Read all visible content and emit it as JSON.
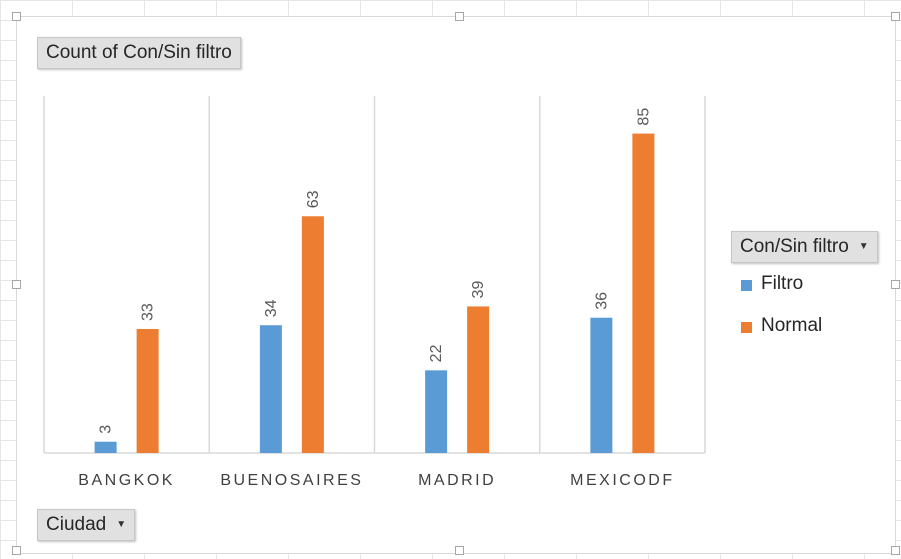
{
  "pivot": {
    "value_field_label": "Count of Con/Sin filtro",
    "legend_field_label": "Con/Sin filtro",
    "axis_field_label": "Ciudad",
    "dropdown_icon": "triangle-down"
  },
  "chart_data": {
    "type": "bar",
    "categories": [
      "BANGKOK",
      "BUENOSAIRES",
      "MADRID",
      "MEXICODF"
    ],
    "series": [
      {
        "name": "Filtro",
        "color": "#5b9bd5",
        "values": [
          3,
          34,
          22,
          36
        ]
      },
      {
        "name": "Normal",
        "color": "#ed7d31",
        "values": [
          33,
          63,
          39,
          85
        ]
      }
    ],
    "ylim": [
      0,
      95
    ],
    "grid": "vertical category separators",
    "legend_position": "right",
    "data_labels": true
  }
}
